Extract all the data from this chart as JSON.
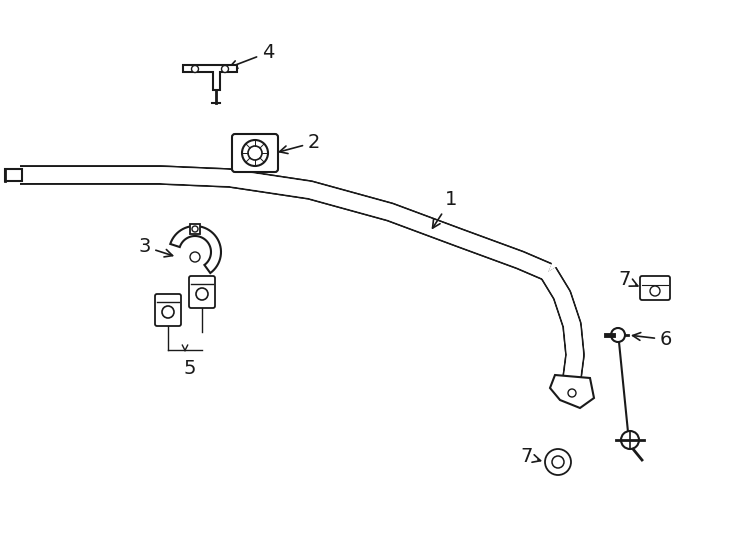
{
  "bg_color": "#ffffff",
  "line_color": "#1a1a1a",
  "figsize": [
    7.34,
    5.4
  ],
  "dpi": 100,
  "label_fontsize": 14
}
